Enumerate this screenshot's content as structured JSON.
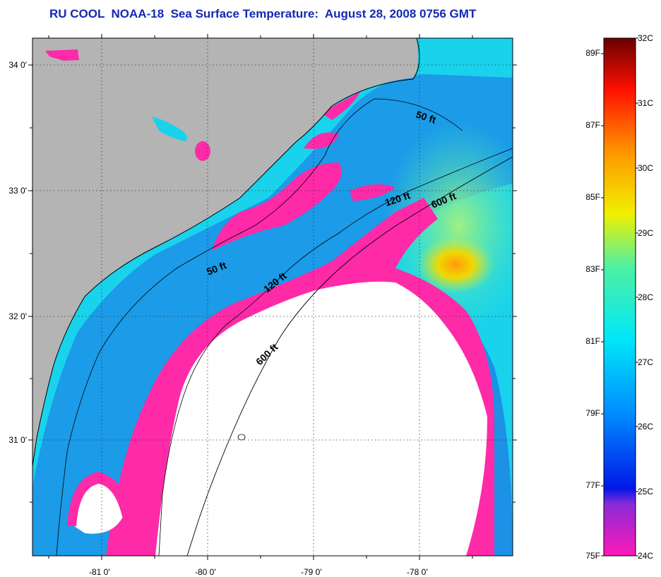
{
  "title": "RU COOL  NOAA-18  Sea Surface Temperature:  August 28, 2008 0756 GMT",
  "map": {
    "lat_labels": [
      "34 0'",
      "33 0'",
      "32 0'",
      "31 0'"
    ],
    "lon_labels": [
      "-81 0'",
      "-80 0'",
      "-79 0'",
      "-78 0'"
    ],
    "isobaths": [
      {
        "label": "50 ft"
      },
      {
        "label": "120 ft"
      },
      {
        "label": "600 ft"
      },
      {
        "label": "50 ft"
      },
      {
        "label": "120 ft"
      },
      {
        "label": "600 ft"
      }
    ],
    "colors": {
      "land": "#b4b4b4",
      "cloud": "#ffffff",
      "cold": "#ff2aa8",
      "sea_base": "#19d2ec",
      "contour": "#000000"
    }
  },
  "colorbar": {
    "fahrenheit_labels": [
      "89F",
      "87F",
      "85F",
      "83F",
      "81F",
      "79F",
      "77F",
      "75F"
    ],
    "celsius_labels": [
      "32C",
      "31C",
      "30C",
      "29C",
      "28C",
      "27C",
      "26C",
      "25C",
      "24C"
    ],
    "range_celsius": [
      24,
      32
    ],
    "stops": [
      "#ff18b8",
      "#8a2ad8",
      "#0018e8",
      "#0090ff",
      "#00e8f8",
      "#50f0a0",
      "#f0f000",
      "#ff9600",
      "#ff1000",
      "#6a0000"
    ]
  }
}
